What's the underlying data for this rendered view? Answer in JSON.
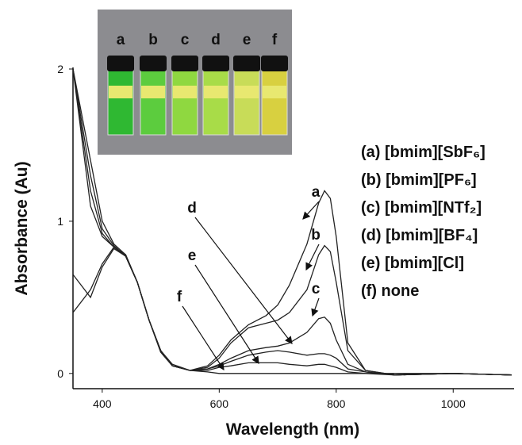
{
  "chart_data": {
    "type": "line",
    "xlabel": "Wavelength (nm)",
    "ylabel": "Absorbance (Au)",
    "x": [
      350,
      380,
      400,
      420,
      440,
      460,
      480,
      500,
      520,
      550,
      580,
      600,
      620,
      650,
      680,
      700,
      720,
      750,
      770,
      780,
      790,
      800,
      820,
      850,
      900,
      1000,
      1100
    ],
    "series": [
      {
        "name": "(a) [bmim][SbF₆]",
        "color": "#222",
        "values": [
          2.0,
          1.4,
          1.0,
          0.85,
          0.78,
          0.6,
          0.35,
          0.15,
          0.05,
          0.02,
          0.05,
          0.12,
          0.22,
          0.32,
          0.38,
          0.45,
          0.58,
          0.85,
          1.12,
          1.2,
          1.15,
          0.9,
          0.2,
          0.02,
          -0.01,
          0,
          -0.01
        ]
      },
      {
        "name": "(b) [bmim][PF₆]",
        "color": "#222",
        "values": [
          2.0,
          1.3,
          0.95,
          0.84,
          0.77,
          0.6,
          0.35,
          0.15,
          0.05,
          0.02,
          0.04,
          0.1,
          0.2,
          0.3,
          0.33,
          0.35,
          0.4,
          0.55,
          0.78,
          0.84,
          0.8,
          0.6,
          0.15,
          0.02,
          -0.01,
          0,
          -0.01
        ]
      },
      {
        "name": "(c) [bmim][NTf₂]",
        "color": "#222",
        "values": [
          2.0,
          1.2,
          0.92,
          0.83,
          0.77,
          0.6,
          0.35,
          0.15,
          0.05,
          0.02,
          0.03,
          0.06,
          0.1,
          0.15,
          0.17,
          0.18,
          0.2,
          0.27,
          0.36,
          0.37,
          0.33,
          0.22,
          0.06,
          0.01,
          -0.01,
          0,
          -0.01
        ]
      },
      {
        "name": "(d) [bmim][BF₄]",
        "color": "#222",
        "values": [
          2.0,
          1.1,
          0.9,
          0.83,
          0.77,
          0.6,
          0.35,
          0.14,
          0.05,
          0.02,
          0.03,
          0.05,
          0.08,
          0.12,
          0.14,
          0.15,
          0.14,
          0.12,
          0.13,
          0.13,
          0.12,
          0.1,
          0.03,
          0.01,
          -0.01,
          0,
          -0.01
        ]
      },
      {
        "name": "(e) [bmim][Cl]",
        "color": "#222",
        "values": [
          0.65,
          0.5,
          0.7,
          0.82,
          0.77,
          0.6,
          0.35,
          0.14,
          0.05,
          0.02,
          0.02,
          0.04,
          0.05,
          0.07,
          0.07,
          0.07,
          0.06,
          0.05,
          0.06,
          0.06,
          0.05,
          0.04,
          0.01,
          0,
          -0.01,
          0,
          -0.01
        ]
      },
      {
        "name": "(f) none",
        "color": "#222",
        "values": [
          0.4,
          0.55,
          0.72,
          0.83,
          0.78,
          0.6,
          0.35,
          0.15,
          0.06,
          0.02,
          0.01,
          0,
          0,
          0,
          0,
          0,
          0,
          0,
          0,
          0,
          0,
          0,
          0,
          0,
          0,
          0,
          -0.01
        ]
      }
    ],
    "curve_labels": [
      "a",
      "b",
      "c",
      "d",
      "e",
      "f"
    ],
    "inset_labels": [
      "a",
      "b",
      "c",
      "d",
      "e",
      "f"
    ],
    "xlim": [
      350,
      1100
    ],
    "ylim": [
      -0.1,
      2.0
    ],
    "xticks": [
      400,
      600,
      800,
      1000
    ],
    "yticks": [
      0,
      1,
      2
    ]
  }
}
